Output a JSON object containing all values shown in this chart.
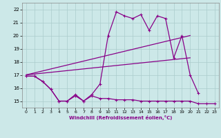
{
  "xlabel": "Windchill (Refroidissement éolien,°C)",
  "bg_color": "#cce8e8",
  "grid_color": "#aacccc",
  "line_color": "#880088",
  "xlim": [
    -0.5,
    23.5
  ],
  "ylim": [
    14.5,
    22.5
  ],
  "xticks": [
    0,
    1,
    2,
    3,
    4,
    5,
    6,
    7,
    8,
    9,
    10,
    11,
    12,
    13,
    14,
    15,
    16,
    17,
    18,
    19,
    20,
    21,
    22,
    23
  ],
  "yticks": [
    15,
    16,
    17,
    18,
    19,
    20,
    21,
    22
  ],
  "series1_x": [
    0,
    1,
    2,
    3,
    4,
    5,
    6,
    7,
    8,
    9,
    10,
    11,
    12,
    13,
    14,
    15,
    16,
    17,
    18,
    19,
    20,
    21
  ],
  "series1_y": [
    16.9,
    16.9,
    16.5,
    15.9,
    15.0,
    15.0,
    15.5,
    15.0,
    15.5,
    16.3,
    20.0,
    21.8,
    21.5,
    21.3,
    21.6,
    20.4,
    21.5,
    21.3,
    18.3,
    20.0,
    17.0,
    15.6
  ],
  "series2_x": [
    0,
    20
  ],
  "series2_y": [
    17.0,
    20.0
  ],
  "series3_x": [
    0,
    20
  ],
  "series3_y": [
    17.0,
    18.3
  ],
  "series4_x": [
    0,
    1,
    2,
    3,
    4,
    5,
    6,
    7,
    8,
    9,
    10,
    11,
    12,
    13,
    14,
    15,
    16,
    17,
    18,
    19,
    20,
    21,
    22,
    23
  ],
  "series4_y": [
    16.9,
    16.9,
    16.5,
    15.9,
    15.0,
    15.0,
    15.4,
    15.0,
    15.4,
    15.2,
    15.2,
    15.1,
    15.1,
    15.1,
    15.0,
    15.0,
    15.0,
    15.0,
    15.0,
    15.0,
    15.0,
    14.8,
    14.8,
    14.8
  ]
}
